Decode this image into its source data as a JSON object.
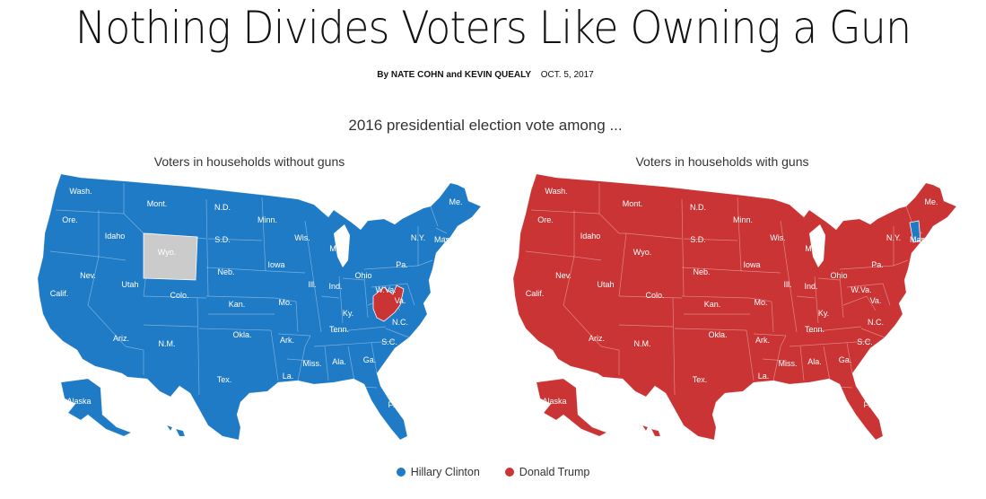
{
  "headline": "Nothing Divides Voters Like Owning a Gun",
  "byline": {
    "by": "By NATE COHN and KEVIN QUEALY",
    "date": "OCT. 5, 2017"
  },
  "subhead": "2016 presidential election vote among ...",
  "colors": {
    "clinton": "#1f7bc6",
    "trump": "#cb3434",
    "tie": "#cbcbcb"
  },
  "legend": [
    {
      "name": "Hillary Clinton",
      "color": "#1f7bc6"
    },
    {
      "name": "Donald Trump",
      "color": "#cb3434"
    }
  ],
  "chart_data": [
    {
      "type": "choropleth-map",
      "title": "Voters in households without guns",
      "default_winner": "Hillary Clinton",
      "exceptions": [
        {
          "state": "W.Va.",
          "winner": "Donald Trump"
        },
        {
          "state": "Wyo.",
          "winner": "tie"
        }
      ],
      "labels": [
        "Wash.",
        "Ore.",
        "Calif.",
        "Idaho",
        "Nev.",
        "Mont.",
        "Wyo.",
        "Utah",
        "Ariz.",
        "Colo.",
        "N.M.",
        "N.D.",
        "S.D.",
        "Neb.",
        "Kan.",
        "Okla.",
        "Tex.",
        "Minn.",
        "Iowa",
        "Mo.",
        "Ark.",
        "La.",
        "Wis.",
        "Ill.",
        "Mich.",
        "Ind.",
        "Ohio",
        "Ky.",
        "Tenn.",
        "Miss.",
        "Ala.",
        "Ga.",
        "Fla.",
        "S.C.",
        "N.C.",
        "Va.",
        "W.Va.",
        "Pa.",
        "N.Y.",
        "Me.",
        "Mass.",
        "Alaska"
      ]
    },
    {
      "type": "choropleth-map",
      "title": "Voters in households with guns",
      "default_winner": "Donald Trump",
      "exceptions": [
        {
          "state": "Vt.",
          "winner": "Hillary Clinton"
        }
      ],
      "labels": [
        "Wash.",
        "Ore.",
        "Calif.",
        "Idaho",
        "Nev.",
        "Mont.",
        "Wyo.",
        "Utah",
        "Ariz.",
        "Colo.",
        "N.M.",
        "N.D.",
        "S.D.",
        "Neb.",
        "Kan.",
        "Okla.",
        "Tex.",
        "Minn.",
        "Iowa",
        "Mo.",
        "Ark.",
        "La.",
        "Wis.",
        "Ill.",
        "Mich.",
        "Ind.",
        "Ohio",
        "Ky.",
        "Tenn.",
        "Miss.",
        "Ala.",
        "Ga.",
        "Fla.",
        "S.C.",
        "N.C.",
        "Va.",
        "W.Va.",
        "Pa.",
        "N.Y.",
        "Me.",
        "Mass.",
        "Alaska"
      ]
    }
  ]
}
